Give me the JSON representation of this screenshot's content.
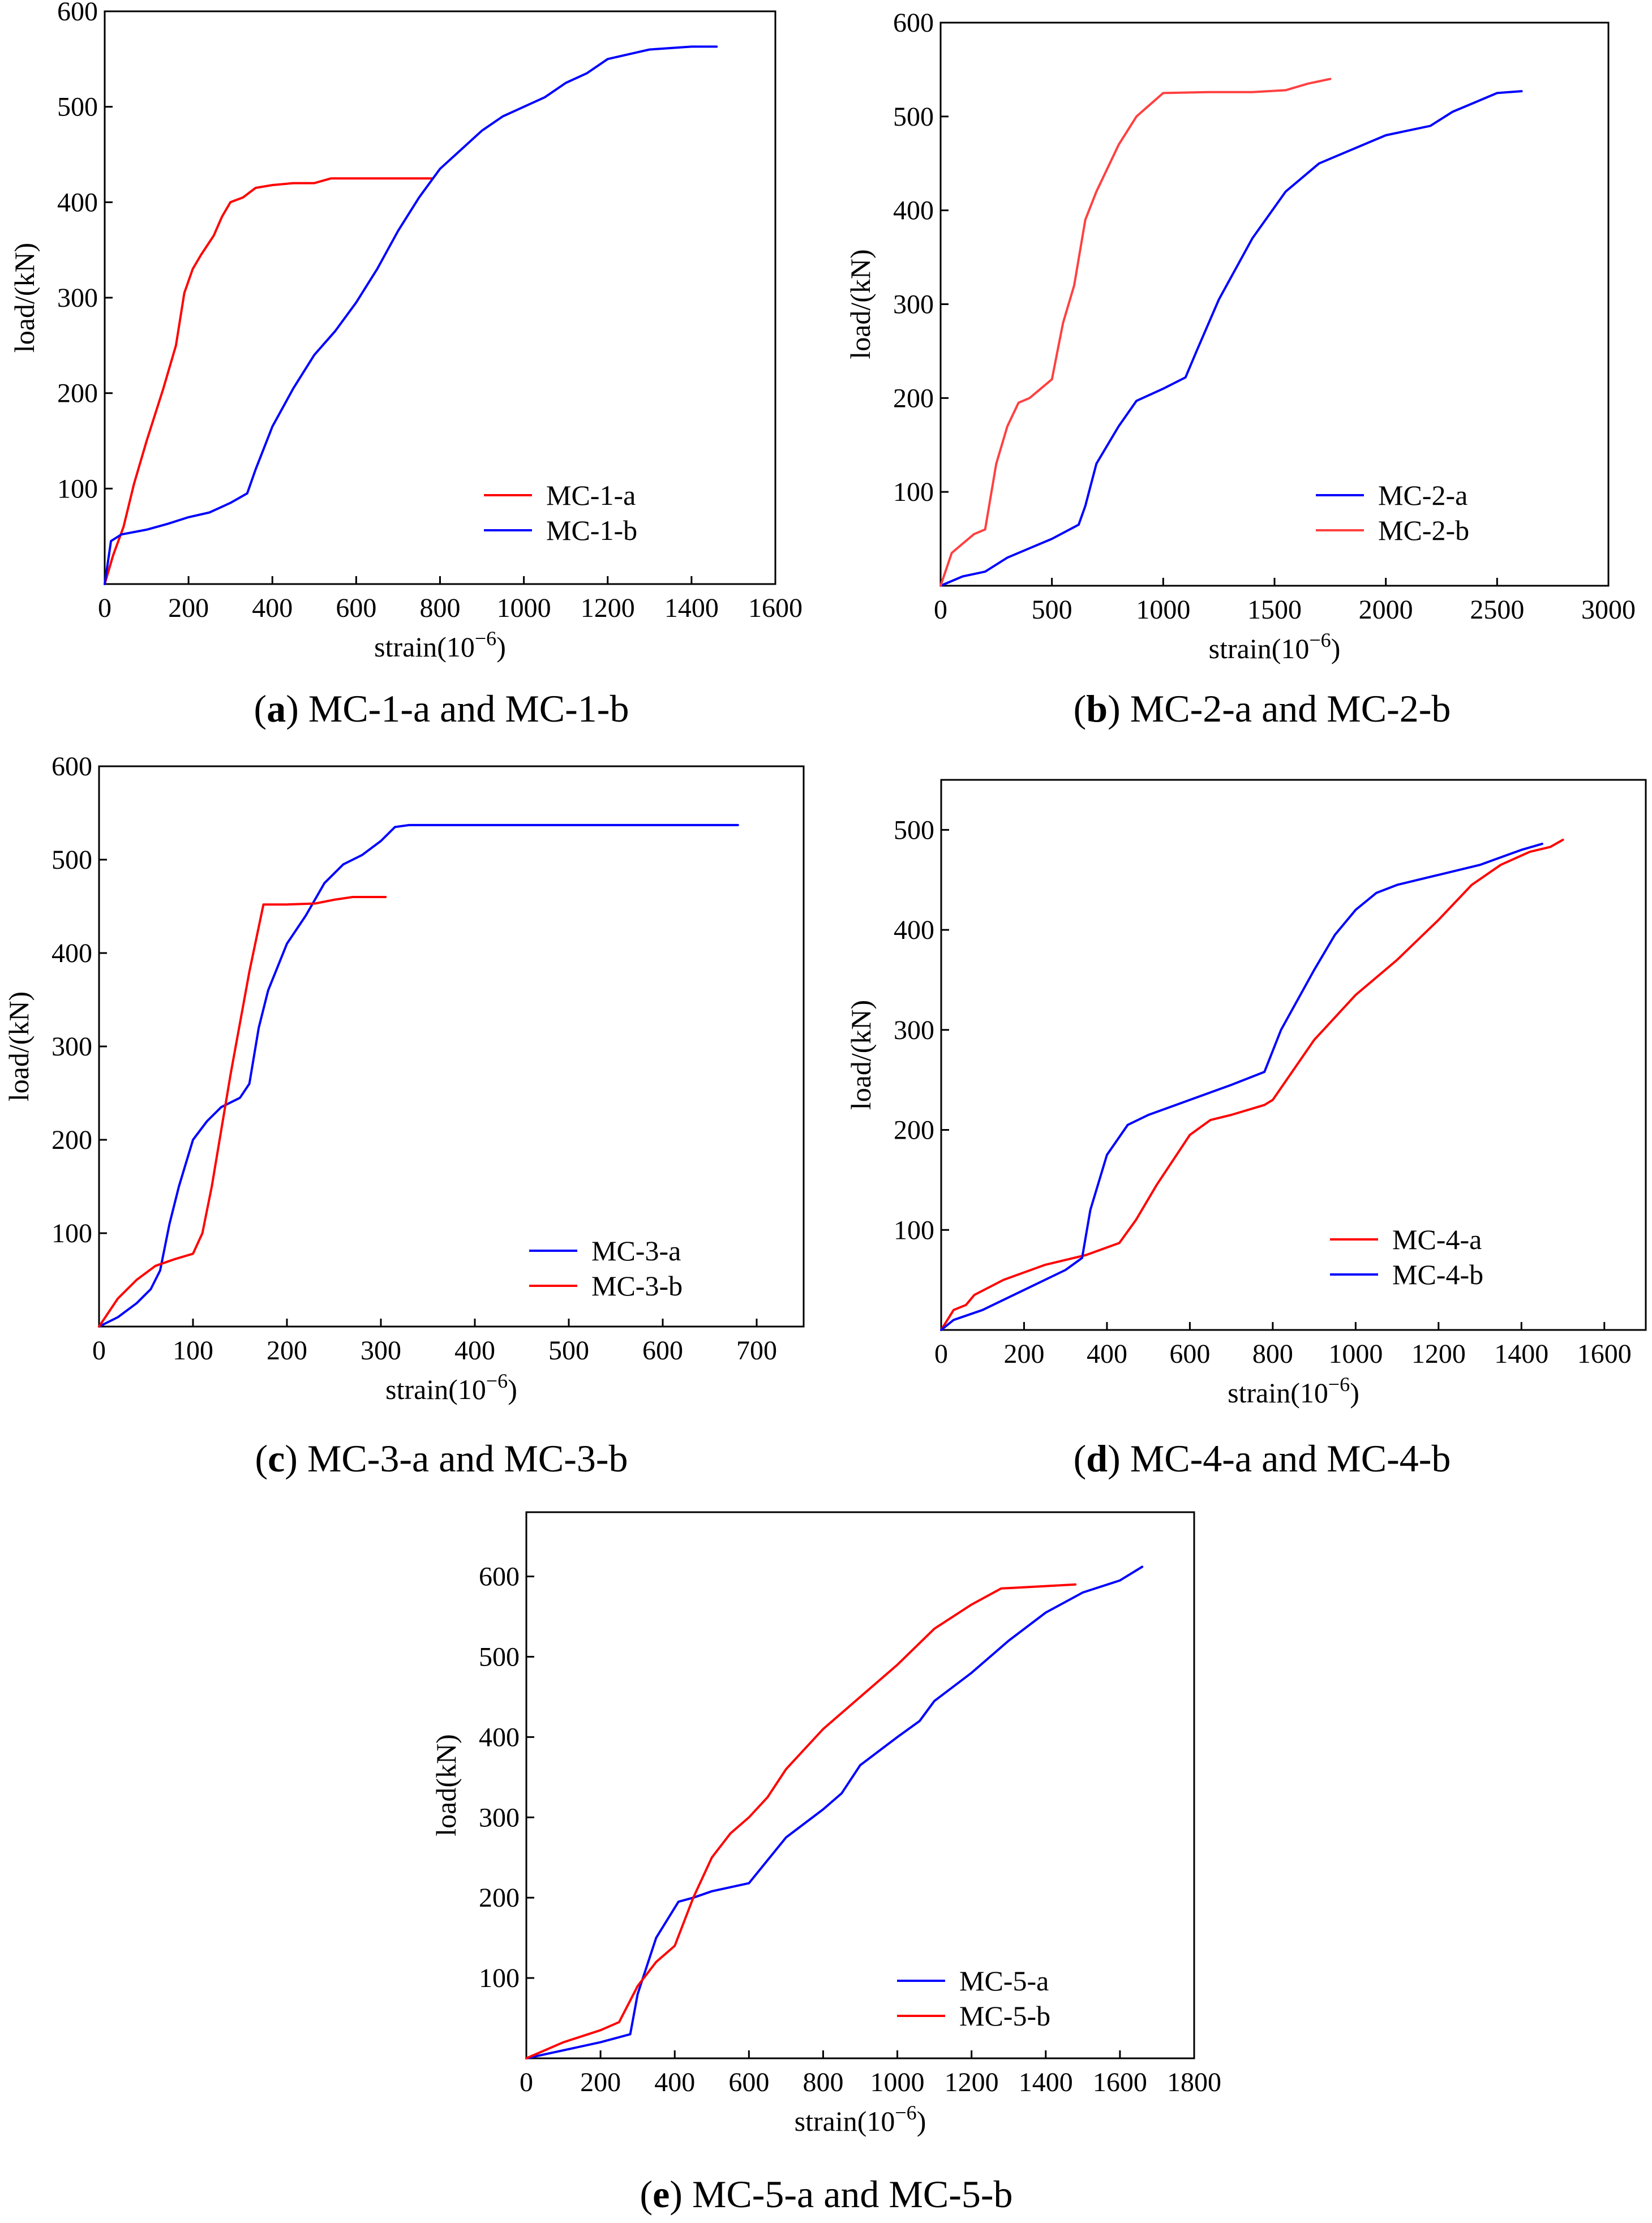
{
  "chart_data": [
    {
      "type": "line",
      "caption_letter": "a",
      "caption_text": " MC-1-a and MC-1-b",
      "xlabel": "strain(10",
      "xlabel_sup": "−6",
      "xlabel_end": ")",
      "ylabel": "load/(kN)",
      "xlim": [
        0,
        1600
      ],
      "ylim": [
        0,
        600
      ],
      "xticks": [
        0,
        200,
        400,
        600,
        800,
        1000,
        1200,
        1400,
        1600
      ],
      "yticks": [
        100,
        200,
        300,
        400,
        500,
        600
      ],
      "legend_position": "bottom-right",
      "series": [
        {
          "name": "MC-1-a",
          "color": "#ff0000",
          "x": [
            0,
            20,
            45,
            70,
            100,
            140,
            170,
            190,
            210,
            230,
            260,
            280,
            300,
            330,
            360,
            400,
            450,
            500,
            540,
            600,
            700,
            780
          ],
          "y": [
            0,
            30,
            60,
            105,
            150,
            205,
            250,
            305,
            330,
            345,
            365,
            385,
            400,
            405,
            415,
            418,
            420,
            420,
            425,
            425,
            425,
            425
          ]
        },
        {
          "name": "MC-1-b",
          "color": "#0000ff",
          "x": [
            0,
            15,
            40,
            100,
            150,
            200,
            250,
            300,
            340,
            360,
            400,
            450,
            500,
            550,
            600,
            650,
            700,
            750,
            800,
            850,
            900,
            950,
            1000,
            1050,
            1100,
            1150,
            1200,
            1300,
            1400,
            1460
          ],
          "y": [
            0,
            45,
            52,
            57,
            63,
            70,
            75,
            85,
            95,
            120,
            165,
            205,
            240,
            265,
            295,
            330,
            370,
            405,
            435,
            455,
            475,
            490,
            500,
            510,
            525,
            535,
            550,
            560,
            563,
            563
          ]
        }
      ]
    },
    {
      "type": "line",
      "caption_letter": "b",
      "caption_text": " MC-2-a and MC-2-b",
      "xlabel": "strain(10",
      "xlabel_sup": "−6",
      "xlabel_end": ")",
      "ylabel": "load/(kN)",
      "xlim": [
        0,
        3000
      ],
      "ylim": [
        0,
        600
      ],
      "xticks": [
        0,
        500,
        1000,
        1500,
        2000,
        2500,
        3000
      ],
      "yticks": [
        100,
        200,
        300,
        400,
        500,
        600
      ],
      "legend_position": "bottom-right",
      "series": [
        {
          "name": "MC-2-a",
          "color": "#0000ff",
          "x": [
            0,
            100,
            200,
            300,
            400,
            500,
            620,
            650,
            700,
            800,
            880,
            1000,
            1100,
            1150,
            1250,
            1400,
            1550,
            1700,
            1800,
            1900,
            2000,
            2100,
            2200,
            2300,
            2400,
            2500,
            2610
          ],
          "y": [
            0,
            10,
            15,
            30,
            40,
            50,
            65,
            85,
            130,
            170,
            197,
            210,
            222,
            250,
            305,
            370,
            420,
            450,
            460,
            470,
            480,
            485,
            490,
            505,
            515,
            525,
            527
          ]
        },
        {
          "name": "MC-2-b",
          "color": "#ff4040",
          "x": [
            0,
            50,
            100,
            150,
            200,
            250,
            300,
            350,
            400,
            500,
            550,
            600,
            650,
            700,
            800,
            880,
            1000,
            1200,
            1400,
            1550,
            1650,
            1750
          ],
          "y": [
            0,
            35,
            45,
            55,
            60,
            130,
            170,
            195,
            200,
            220,
            280,
            320,
            390,
            420,
            470,
            500,
            525,
            526,
            526,
            528,
            535,
            540
          ]
        }
      ]
    },
    {
      "type": "line",
      "caption_letter": "c",
      "caption_text": " MC-3-a and MC-3-b",
      "xlabel": "strain(10",
      "xlabel_sup": "−6",
      "xlabel_end": ")",
      "ylabel": "load/(kN)",
      "xlim": [
        0,
        750
      ],
      "ylim": [
        0,
        600
      ],
      "xticks": [
        0,
        100,
        200,
        300,
        400,
        500,
        600,
        700
      ],
      "yticks": [
        100,
        200,
        300,
        400,
        500,
        600
      ],
      "legend_position": "bottom-right",
      "series": [
        {
          "name": "MC-3-a",
          "color": "#0000ff",
          "x": [
            0,
            20,
            40,
            55,
            65,
            75,
            85,
            100,
            115,
            130,
            150,
            160,
            170,
            180,
            200,
            220,
            240,
            260,
            280,
            300,
            315,
            330,
            400,
            500,
            600,
            680
          ],
          "y": [
            0,
            10,
            25,
            40,
            60,
            110,
            150,
            200,
            220,
            235,
            245,
            260,
            320,
            360,
            410,
            440,
            475,
            495,
            505,
            520,
            535,
            537,
            537,
            537,
            537,
            537
          ]
        },
        {
          "name": "MC-3-b",
          "color": "#ff0000",
          "x": [
            0,
            20,
            40,
            60,
            80,
            100,
            110,
            120,
            140,
            160,
            175,
            200,
            230,
            250,
            270,
            305
          ],
          "y": [
            0,
            30,
            50,
            65,
            72,
            78,
            100,
            150,
            270,
            380,
            452,
            452,
            453,
            457,
            460,
            460
          ]
        }
      ]
    },
    {
      "type": "line",
      "caption_letter": "d",
      "caption_text": " MC-4-a and MC-4-b",
      "xlabel": "strain(10",
      "xlabel_sup": "−6",
      "xlabel_end": ")",
      "ylabel": "load/(kN)",
      "xlim": [
        0,
        1700
      ],
      "ylim": [
        0,
        550
      ],
      "xticks": [
        0,
        200,
        400,
        600,
        800,
        1000,
        1200,
        1400,
        1600
      ],
      "yticks": [
        100,
        200,
        300,
        400,
        500
      ],
      "legend_position": "bottom-right",
      "series": [
        {
          "name": "MC-4-a",
          "color": "#ff0000",
          "x": [
            0,
            30,
            60,
            80,
            150,
            250,
            350,
            430,
            470,
            520,
            600,
            650,
            700,
            780,
            800,
            850,
            900,
            1000,
            1100,
            1200,
            1280,
            1350,
            1420,
            1470,
            1500
          ],
          "y": [
            0,
            20,
            25,
            35,
            50,
            65,
            75,
            87,
            110,
            145,
            195,
            210,
            215,
            225,
            230,
            260,
            290,
            335,
            370,
            410,
            445,
            465,
            478,
            483,
            490
          ]
        },
        {
          "name": "MC-4-b",
          "color": "#0000ff",
          "x": [
            0,
            30,
            100,
            200,
            300,
            340,
            360,
            400,
            450,
            500,
            600,
            700,
            780,
            820,
            860,
            900,
            950,
            1000,
            1050,
            1100,
            1200,
            1300,
            1400,
            1450
          ],
          "y": [
            0,
            10,
            20,
            40,
            60,
            72,
            120,
            175,
            205,
            215,
            230,
            245,
            258,
            300,
            330,
            360,
            395,
            420,
            437,
            445,
            455,
            465,
            480,
            486
          ]
        }
      ]
    },
    {
      "type": "line",
      "caption_letter": "e",
      "caption_text": " MC-5-a and MC-5-b",
      "xlabel": "strain(10",
      "xlabel_sup": "−6",
      "xlabel_end": ")",
      "ylabel": "load(kN)",
      "xlim": [
        0,
        1800
      ],
      "ylim": [
        0,
        680
      ],
      "xticks": [
        0,
        200,
        400,
        600,
        800,
        1000,
        1200,
        1400,
        1600,
        1800
      ],
      "yticks": [
        100,
        200,
        300,
        400,
        500,
        600
      ],
      "legend_position": "bottom-right",
      "series": [
        {
          "name": "MC-5-a",
          "color": "#0000ff",
          "x": [
            0,
            100,
            200,
            280,
            300,
            350,
            410,
            450,
            500,
            600,
            700,
            800,
            850,
            900,
            1000,
            1060,
            1100,
            1200,
            1300,
            1400,
            1500,
            1600,
            1660
          ],
          "y": [
            0,
            10,
            20,
            30,
            80,
            150,
            195,
            200,
            208,
            218,
            275,
            310,
            330,
            365,
            400,
            420,
            445,
            480,
            520,
            555,
            580,
            595,
            612
          ]
        },
        {
          "name": "MC-5-b",
          "color": "#ff0000",
          "x": [
            0,
            100,
            200,
            250,
            300,
            350,
            400,
            450,
            500,
            550,
            600,
            650,
            700,
            800,
            900,
            1000,
            1100,
            1200,
            1280,
            1400,
            1480
          ],
          "y": [
            0,
            20,
            35,
            45,
            90,
            120,
            140,
            200,
            250,
            280,
            300,
            325,
            360,
            410,
            450,
            490,
            535,
            565,
            585,
            588,
            590
          ]
        }
      ]
    }
  ]
}
